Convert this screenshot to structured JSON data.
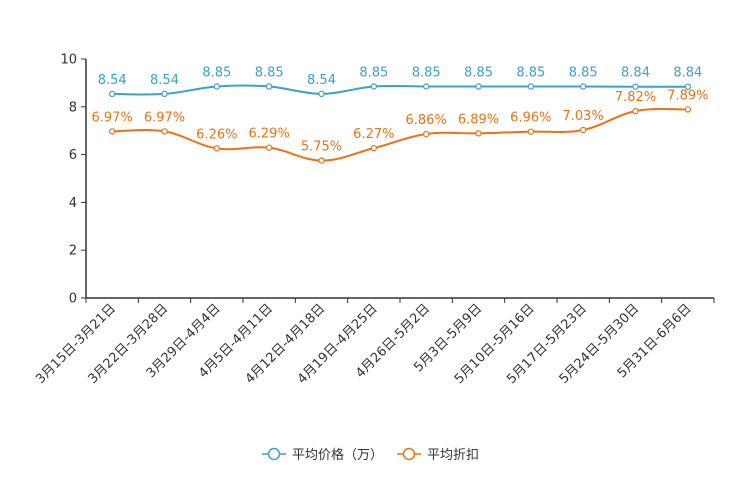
{
  "chart_data": {
    "type": "line",
    "title": "",
    "xlabel": "",
    "ylabel": "",
    "ylim": [
      0,
      10
    ],
    "yticks": [
      0,
      2,
      4,
      6,
      8,
      10
    ],
    "grid": false,
    "legend_position": "bottom",
    "categories": [
      "3月15日-3月21日",
      "3月22日-3月28日",
      "3月29日-4月4日",
      "4月5日-4月11日",
      "4月12日-4月18日",
      "4月19日-4月25日",
      "4月26日-5月2日",
      "5月3日-5月9日",
      "5月10日-5月16日",
      "5月17日-5月23日",
      "5月24日-5月30日",
      "5月31日-6月6日"
    ],
    "series": [
      {
        "name": "平均价格（万）",
        "color": "#3ba0d0",
        "values": [
          8.54,
          8.54,
          8.85,
          8.85,
          8.54,
          8.85,
          8.85,
          8.85,
          8.85,
          8.85,
          8.84,
          8.84
        ],
        "labels": [
          "8.54",
          "8.54",
          "8.85",
          "8.85",
          "8.54",
          "8.85",
          "8.85",
          "8.85",
          "8.85",
          "8.85",
          "8.84",
          "8.84"
        ]
      },
      {
        "name": "平均折扣",
        "color": "#f07012",
        "values": [
          6.97,
          6.97,
          6.26,
          6.29,
          5.75,
          6.27,
          6.86,
          6.89,
          6.96,
          7.03,
          7.82,
          7.89
        ],
        "labels": [
          "6.97%",
          "6.97%",
          "6.26%",
          "6.29%",
          "5.75%",
          "6.27%",
          "6.86%",
          "6.89%",
          "6.96%",
          "7.03%",
          "7.82%",
          "7.89%"
        ]
      }
    ]
  }
}
